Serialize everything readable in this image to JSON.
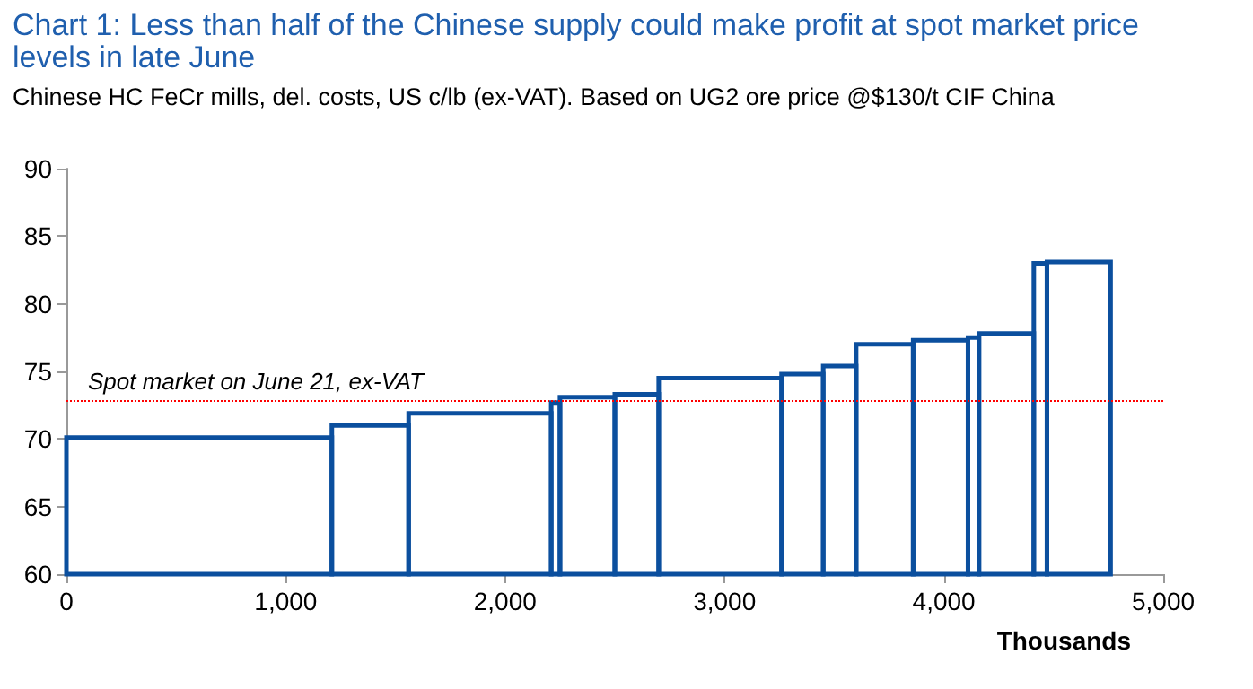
{
  "chart_data": {
    "type": "histogram",
    "title": "Chart 1: Less than half of the Chinese supply could make profit at spot market price levels in late June",
    "subtitle": "Chinese HC FeCr mills, del. costs, US c/lb (ex-VAT). Based on UG2 ore price @$130/t CIF China",
    "xlabel": "Thousands",
    "bins": [
      0,
      1210,
      1560,
      2210,
      2250,
      2500,
      2700,
      3260,
      3450,
      3600,
      3860,
      4110,
      4160,
      4410,
      4470,
      4760
    ],
    "values": [
      70.1,
      71,
      71.9,
      72.7,
      73.1,
      73.3,
      74.5,
      74.8,
      75.4,
      77,
      77.3,
      77.5,
      77.8,
      83,
      83.1
    ],
    "color": "#0b4f9e",
    "xlim": [
      0,
      5000
    ],
    "xticks": [
      0,
      {
        "value": 1000,
        "label": "1,000"
      },
      {
        "value": 2000,
        "label": "2,000"
      },
      {
        "value": 3000,
        "label": "3,000"
      },
      {
        "value": 4000,
        "label": "4,000"
      },
      {
        "value": 5000,
        "label": "5,000"
      }
    ],
    "ylim": [
      60,
      90
    ],
    "yticks": [
      60,
      65,
      70,
      75,
      80,
      85,
      90
    ],
    "ref_lines": [
      {
        "axis": "y",
        "value": 72.9,
        "label": "Spot market on June 21, ex-VAT",
        "color": "#ff0000",
        "line_style": "dotted"
      }
    ]
  }
}
